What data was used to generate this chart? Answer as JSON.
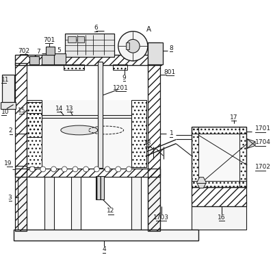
{
  "bg": "#ffffff",
  "lc": "#1a1a1a",
  "fc_light": "#f0f0f0",
  "fc_mid": "#e0e0e0",
  "fc_dark": "#d0d0d0",
  "fw": 3.99,
  "fh": 3.75,
  "dpi": 100
}
